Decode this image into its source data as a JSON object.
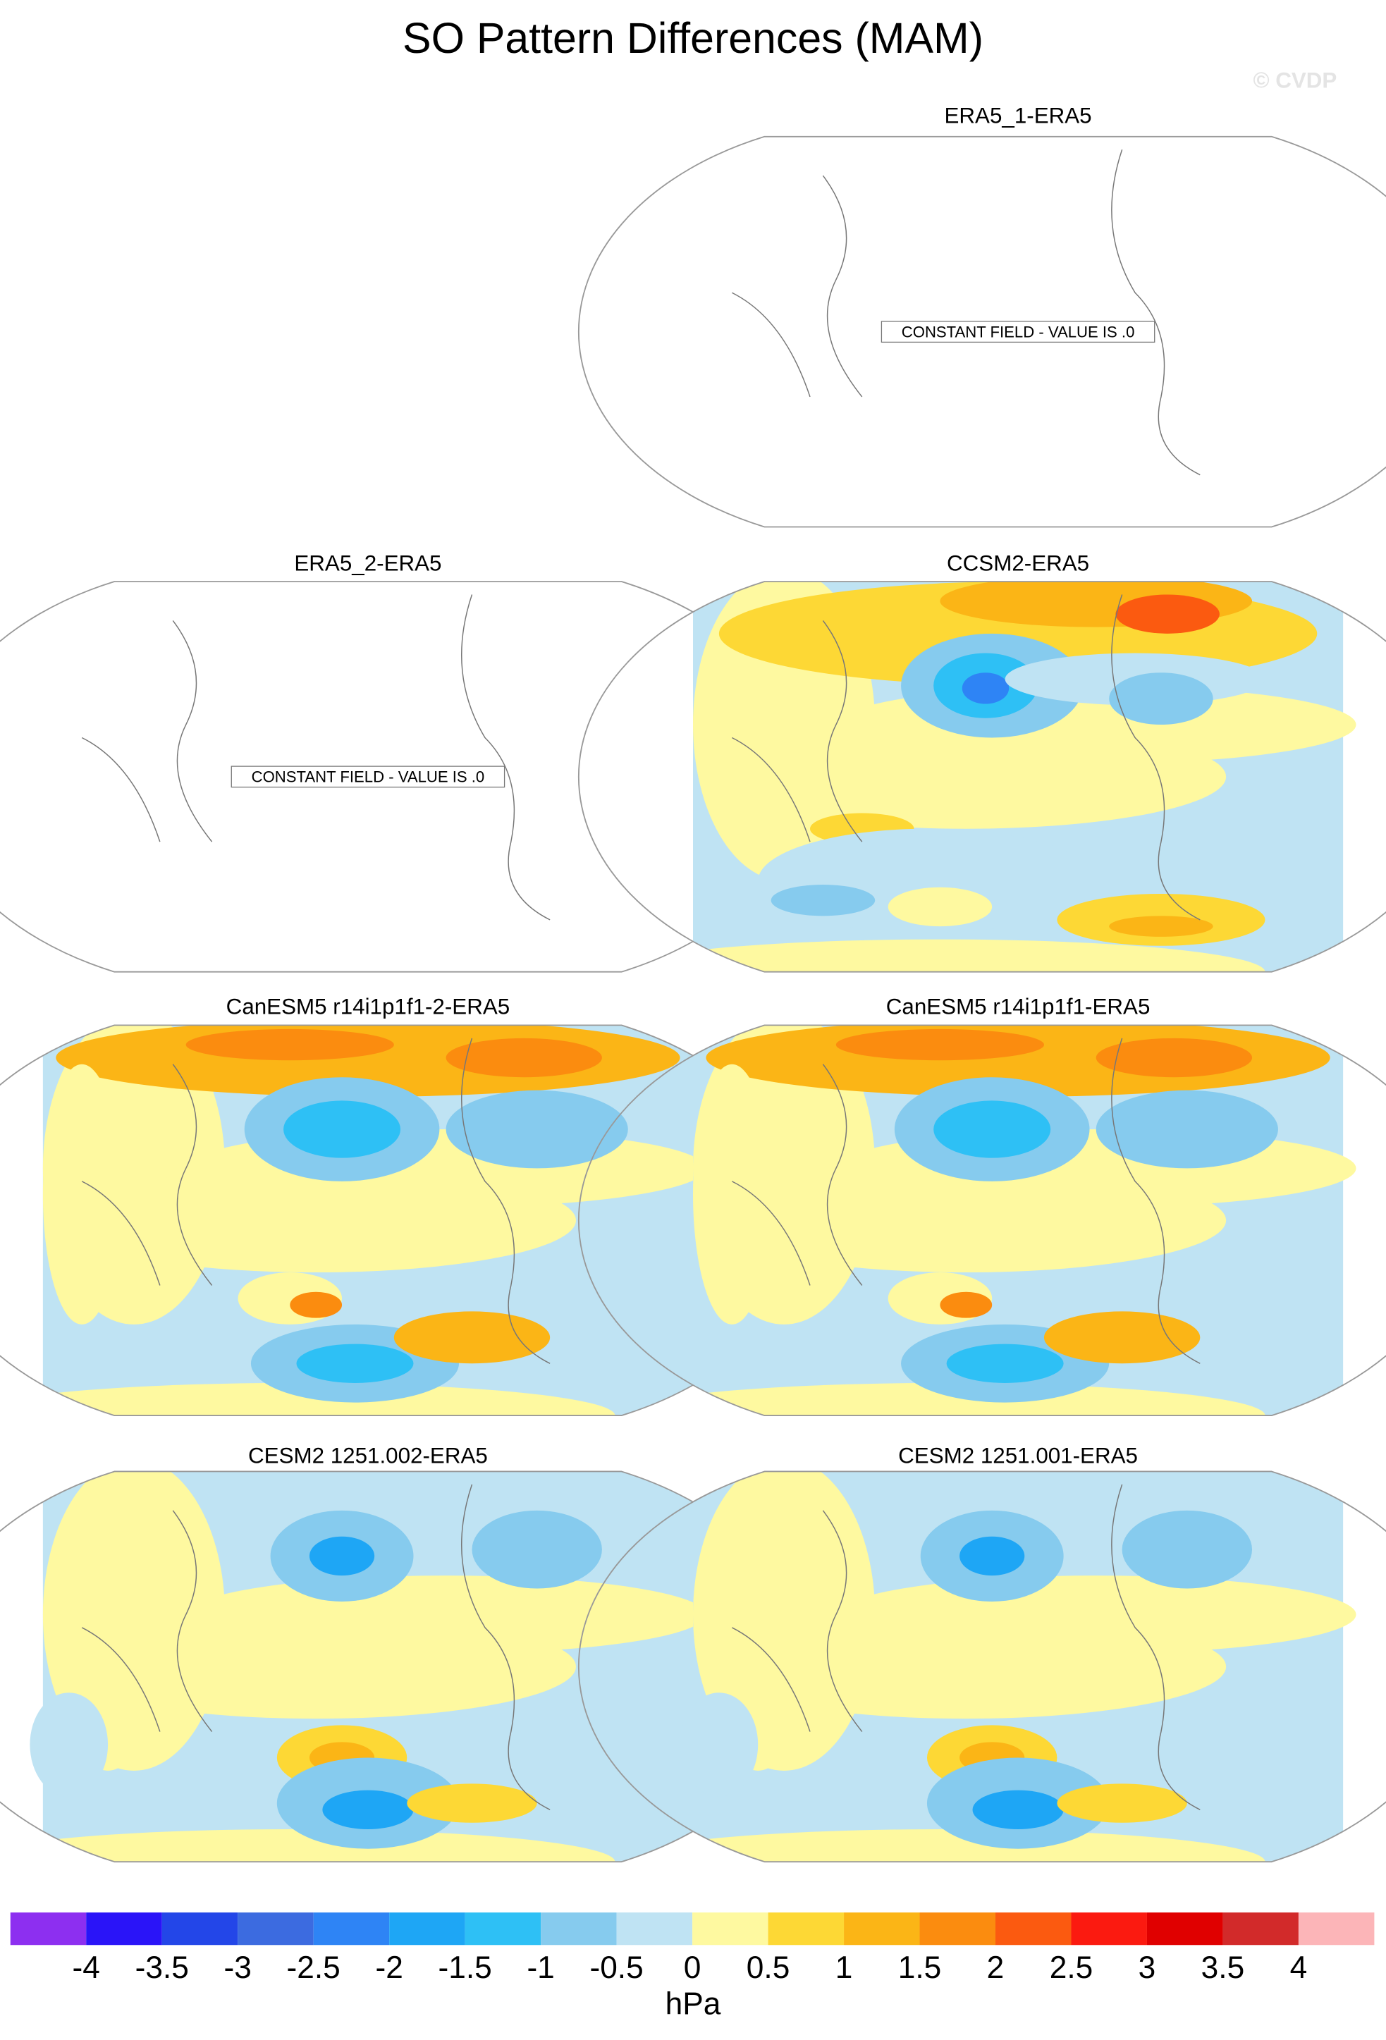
{
  "chart_data": {
    "type": "map_panels",
    "title": "SO Pattern Differences (MAM)",
    "watermark": "© CVDP",
    "panels": [
      {
        "title": "ERA5_1-ERA5",
        "annotation": "CONSTANT FIELD - VALUE IS .0"
      },
      {
        "title": "ERA5_2-ERA5",
        "annotation": "CONSTANT FIELD - VALUE IS .0"
      },
      {
        "title": "CCSM2-ERA5"
      },
      {
        "title": "CanESM5 r14i1p1f1-2-ERA5"
      },
      {
        "title": "CanESM5 r14i1p1f1-ERA5"
      },
      {
        "title": "CESM2 1251.002-ERA5"
      },
      {
        "title": "CESM2 1251.001-ERA5"
      }
    ],
    "colorbar": {
      "unit": "hPa",
      "ticks": [
        -4,
        -3.5,
        -3,
        -2.5,
        -2,
        -1.5,
        -1,
        -0.5,
        0,
        0.5,
        1,
        1.5,
        2,
        2.5,
        3,
        3.5,
        4
      ],
      "colors": [
        "#8d2ff0",
        "#2a14f8",
        "#2346e8",
        "#3c6be0",
        "#2e84f5",
        "#1ea6f5",
        "#2ec0f5",
        "#86cbee",
        "#bfe3f3",
        "#fef9a0",
        "#fdd835",
        "#fbb516",
        "#fb8c0f",
        "#fb5a10",
        "#fb1a10",
        "#e00000",
        "#d22a2a",
        "#fcb5b8"
      ]
    }
  }
}
